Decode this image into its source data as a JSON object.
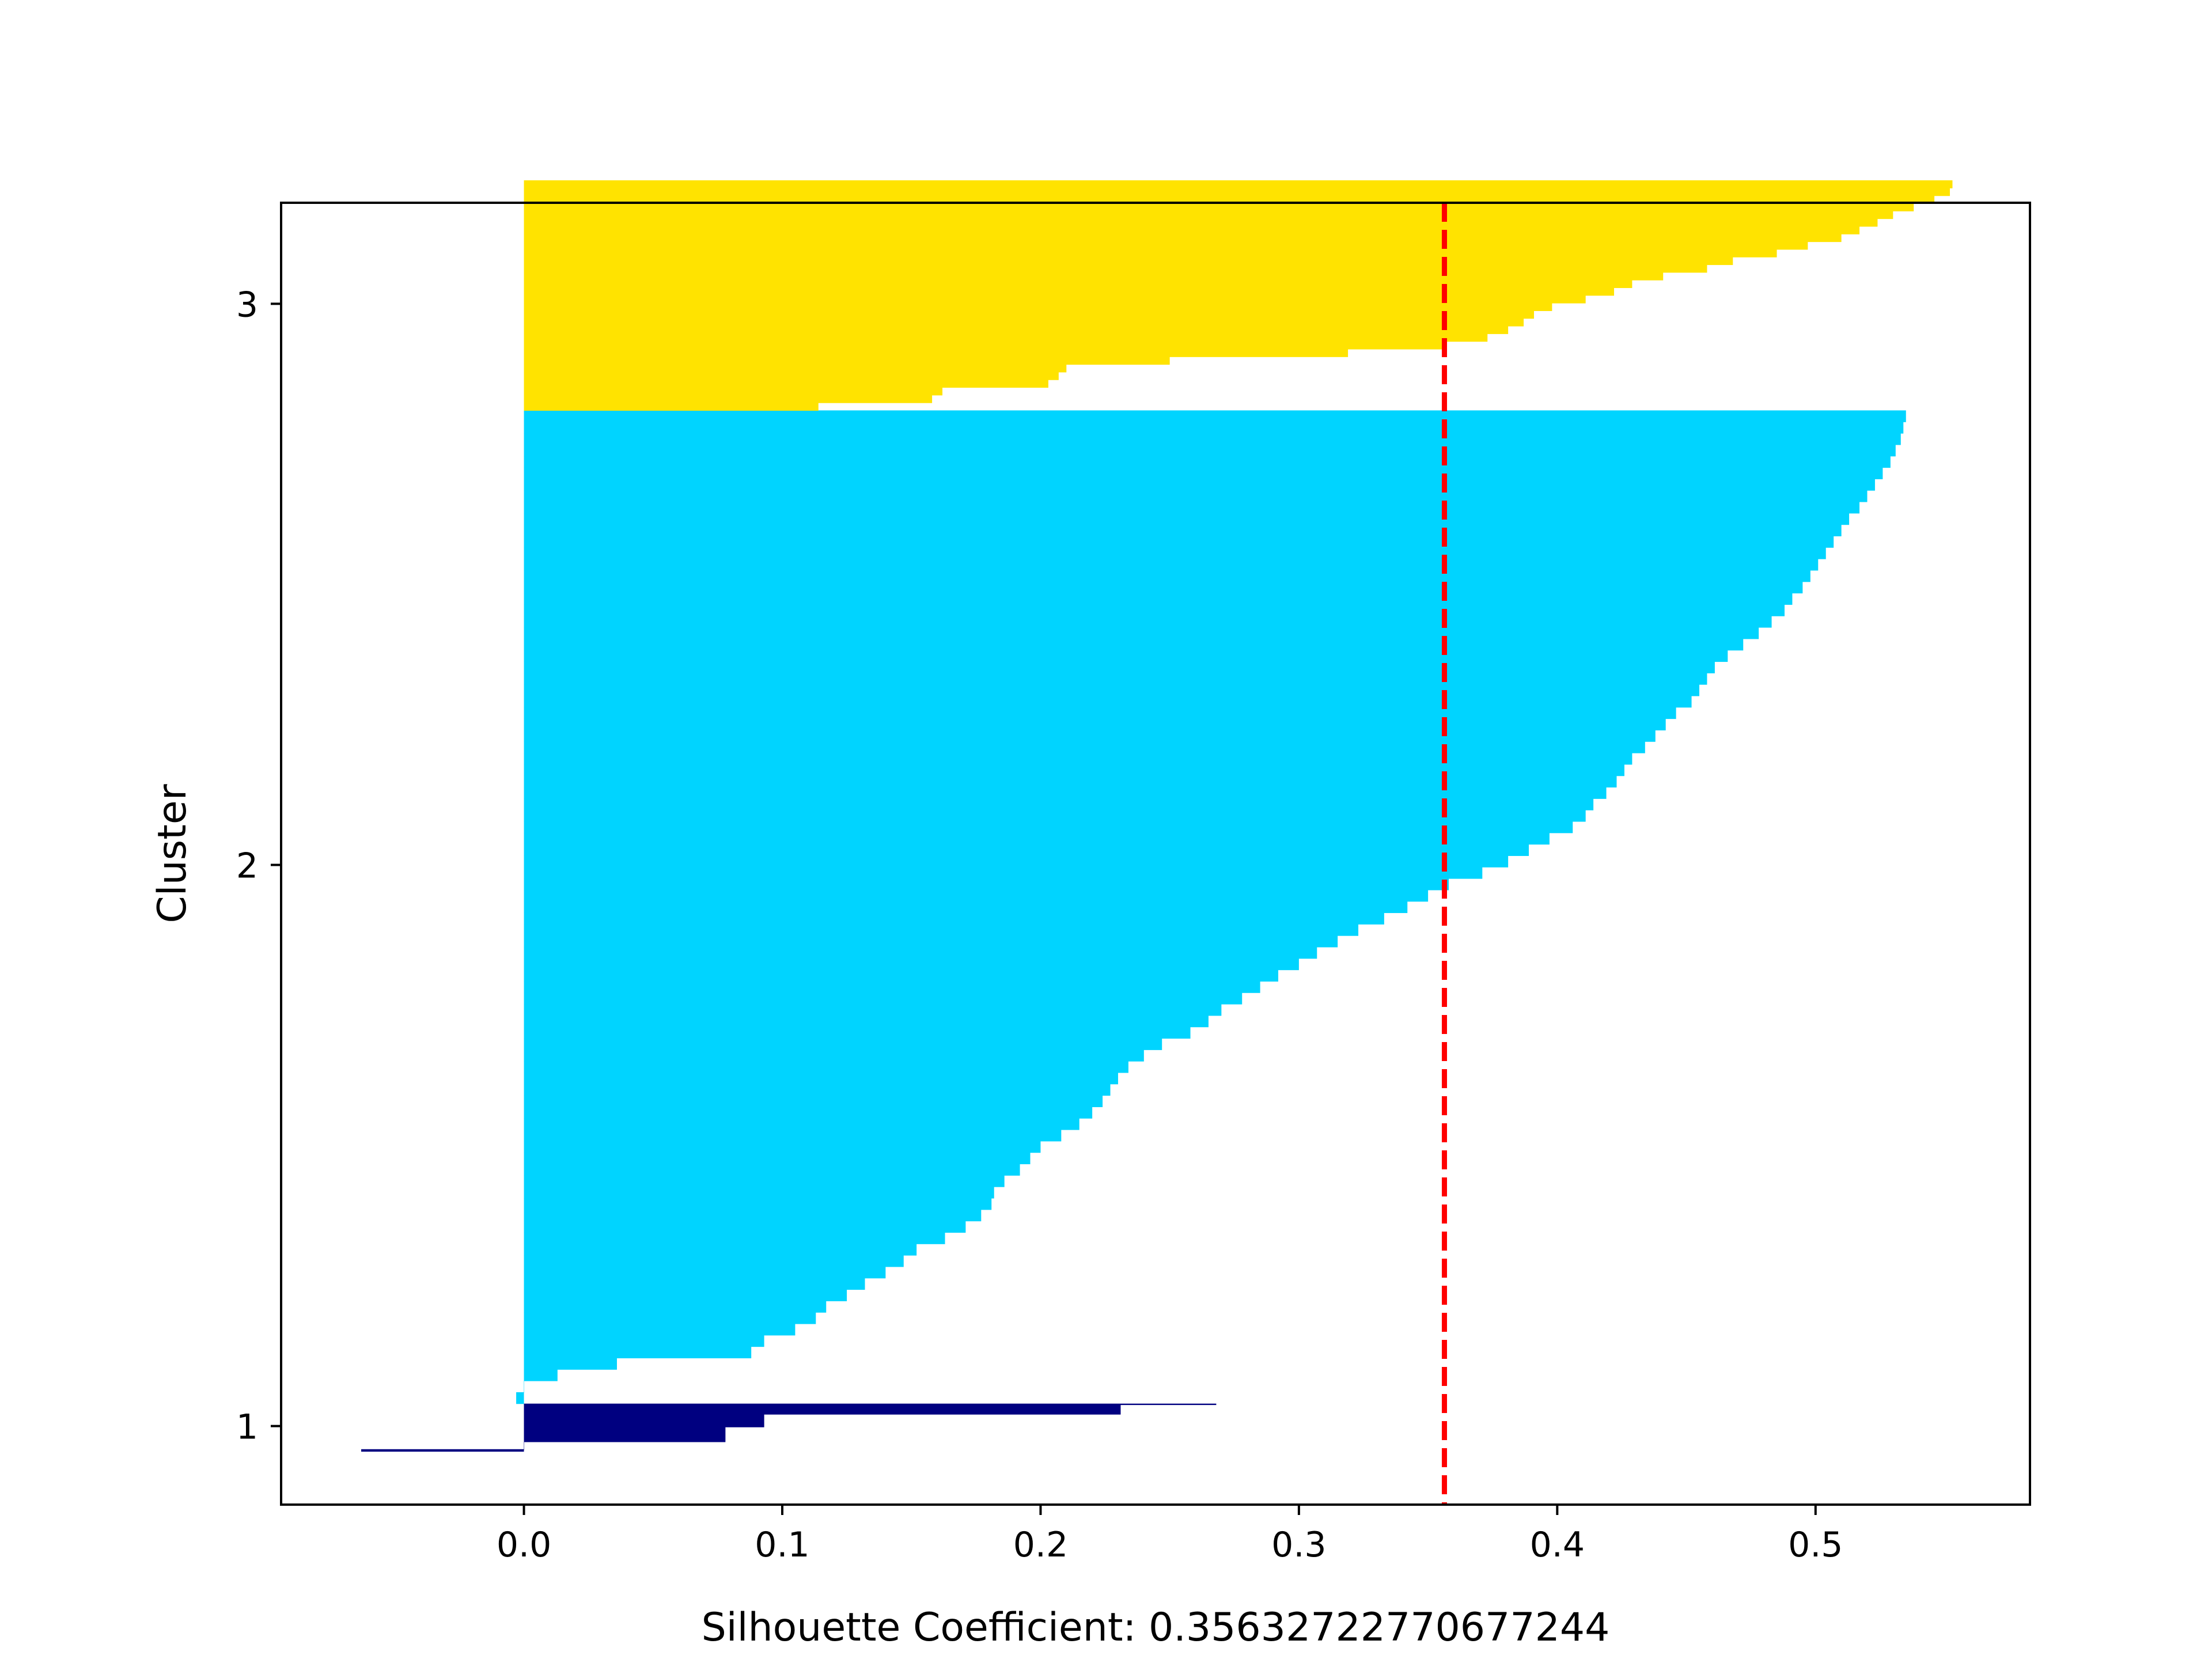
{
  "chart_data": {
    "type": "bar",
    "orientation": "horizontal",
    "title": "",
    "xlabel": "Silhouette Coefficient: 0.35632722770677244",
    "ylabel": "Cluster",
    "xlim": [
      -0.094,
      0.583
    ],
    "ylim": [
      0.86,
      3.18
    ],
    "xticks": [
      "0.0",
      "0.1",
      "0.2",
      "0.3",
      "0.4",
      "0.5"
    ],
    "yticks": [
      "1",
      "2",
      "3"
    ],
    "grid": false,
    "legend": "none",
    "average_silhouette": 0.35632722770677244,
    "average_line_color": "#ff0000",
    "clusters": [
      {
        "label": "1",
        "color": "#000080",
        "y_range": [
          0.955,
          1.04
        ],
        "silhouette_values": [
          -0.063,
          -0.063,
          0.0,
          0.0,
          0.0,
          0.0,
          0.0,
          0.0,
          0.0,
          0.078,
          0.078,
          0.078,
          0.078,
          0.078,
          0.078,
          0.078,
          0.078,
          0.078,
          0.078,
          0.078,
          0.078,
          0.078,
          0.078,
          0.093,
          0.093,
          0.093,
          0.093,
          0.093,
          0.093,
          0.093,
          0.093,
          0.093,
          0.093,
          0.093,
          0.093,
          0.231,
          0.231,
          0.231,
          0.231,
          0.231,
          0.231,
          0.231,
          0.231,
          0.231,
          0.268
        ]
      },
      {
        "label": "2",
        "color": "#00d4ff",
        "y_range": [
          1.04,
          2.81
        ],
        "silhouette_values": [
          -0.003,
          0.0,
          0.013,
          0.036,
          0.088,
          0.093,
          0.105,
          0.113,
          0.117,
          0.125,
          0.132,
          0.14,
          0.147,
          0.152,
          0.163,
          0.171,
          0.177,
          0.181,
          0.182,
          0.186,
          0.192,
          0.196,
          0.2,
          0.208,
          0.215,
          0.22,
          0.224,
          0.227,
          0.23,
          0.234,
          0.24,
          0.247,
          0.258,
          0.265,
          0.27,
          0.278,
          0.285,
          0.292,
          0.3,
          0.307,
          0.315,
          0.323,
          0.333,
          0.342,
          0.35,
          0.358,
          0.371,
          0.381,
          0.389,
          0.397,
          0.406,
          0.411,
          0.414,
          0.419,
          0.423,
          0.426,
          0.429,
          0.434,
          0.438,
          0.442,
          0.446,
          0.452,
          0.455,
          0.458,
          0.461,
          0.466,
          0.472,
          0.478,
          0.483,
          0.488,
          0.491,
          0.495,
          0.498,
          0.501,
          0.504,
          0.507,
          0.51,
          0.513,
          0.517,
          0.52,
          0.523,
          0.526,
          0.529,
          0.531,
          0.533,
          0.534,
          0.535
        ]
      },
      {
        "label": "3",
        "color": "#ffe300",
        "y_range": [
          2.81,
          3.22
        ],
        "silhouette_values": [
          0.114,
          0.158,
          0.162,
          0.203,
          0.207,
          0.21,
          0.25,
          0.319,
          0.357,
          0.373,
          0.381,
          0.387,
          0.391,
          0.398,
          0.411,
          0.422,
          0.429,
          0.441,
          0.458,
          0.468,
          0.485,
          0.497,
          0.51,
          0.517,
          0.524,
          0.53,
          0.538,
          0.546,
          0.552,
          0.553
        ]
      }
    ]
  }
}
